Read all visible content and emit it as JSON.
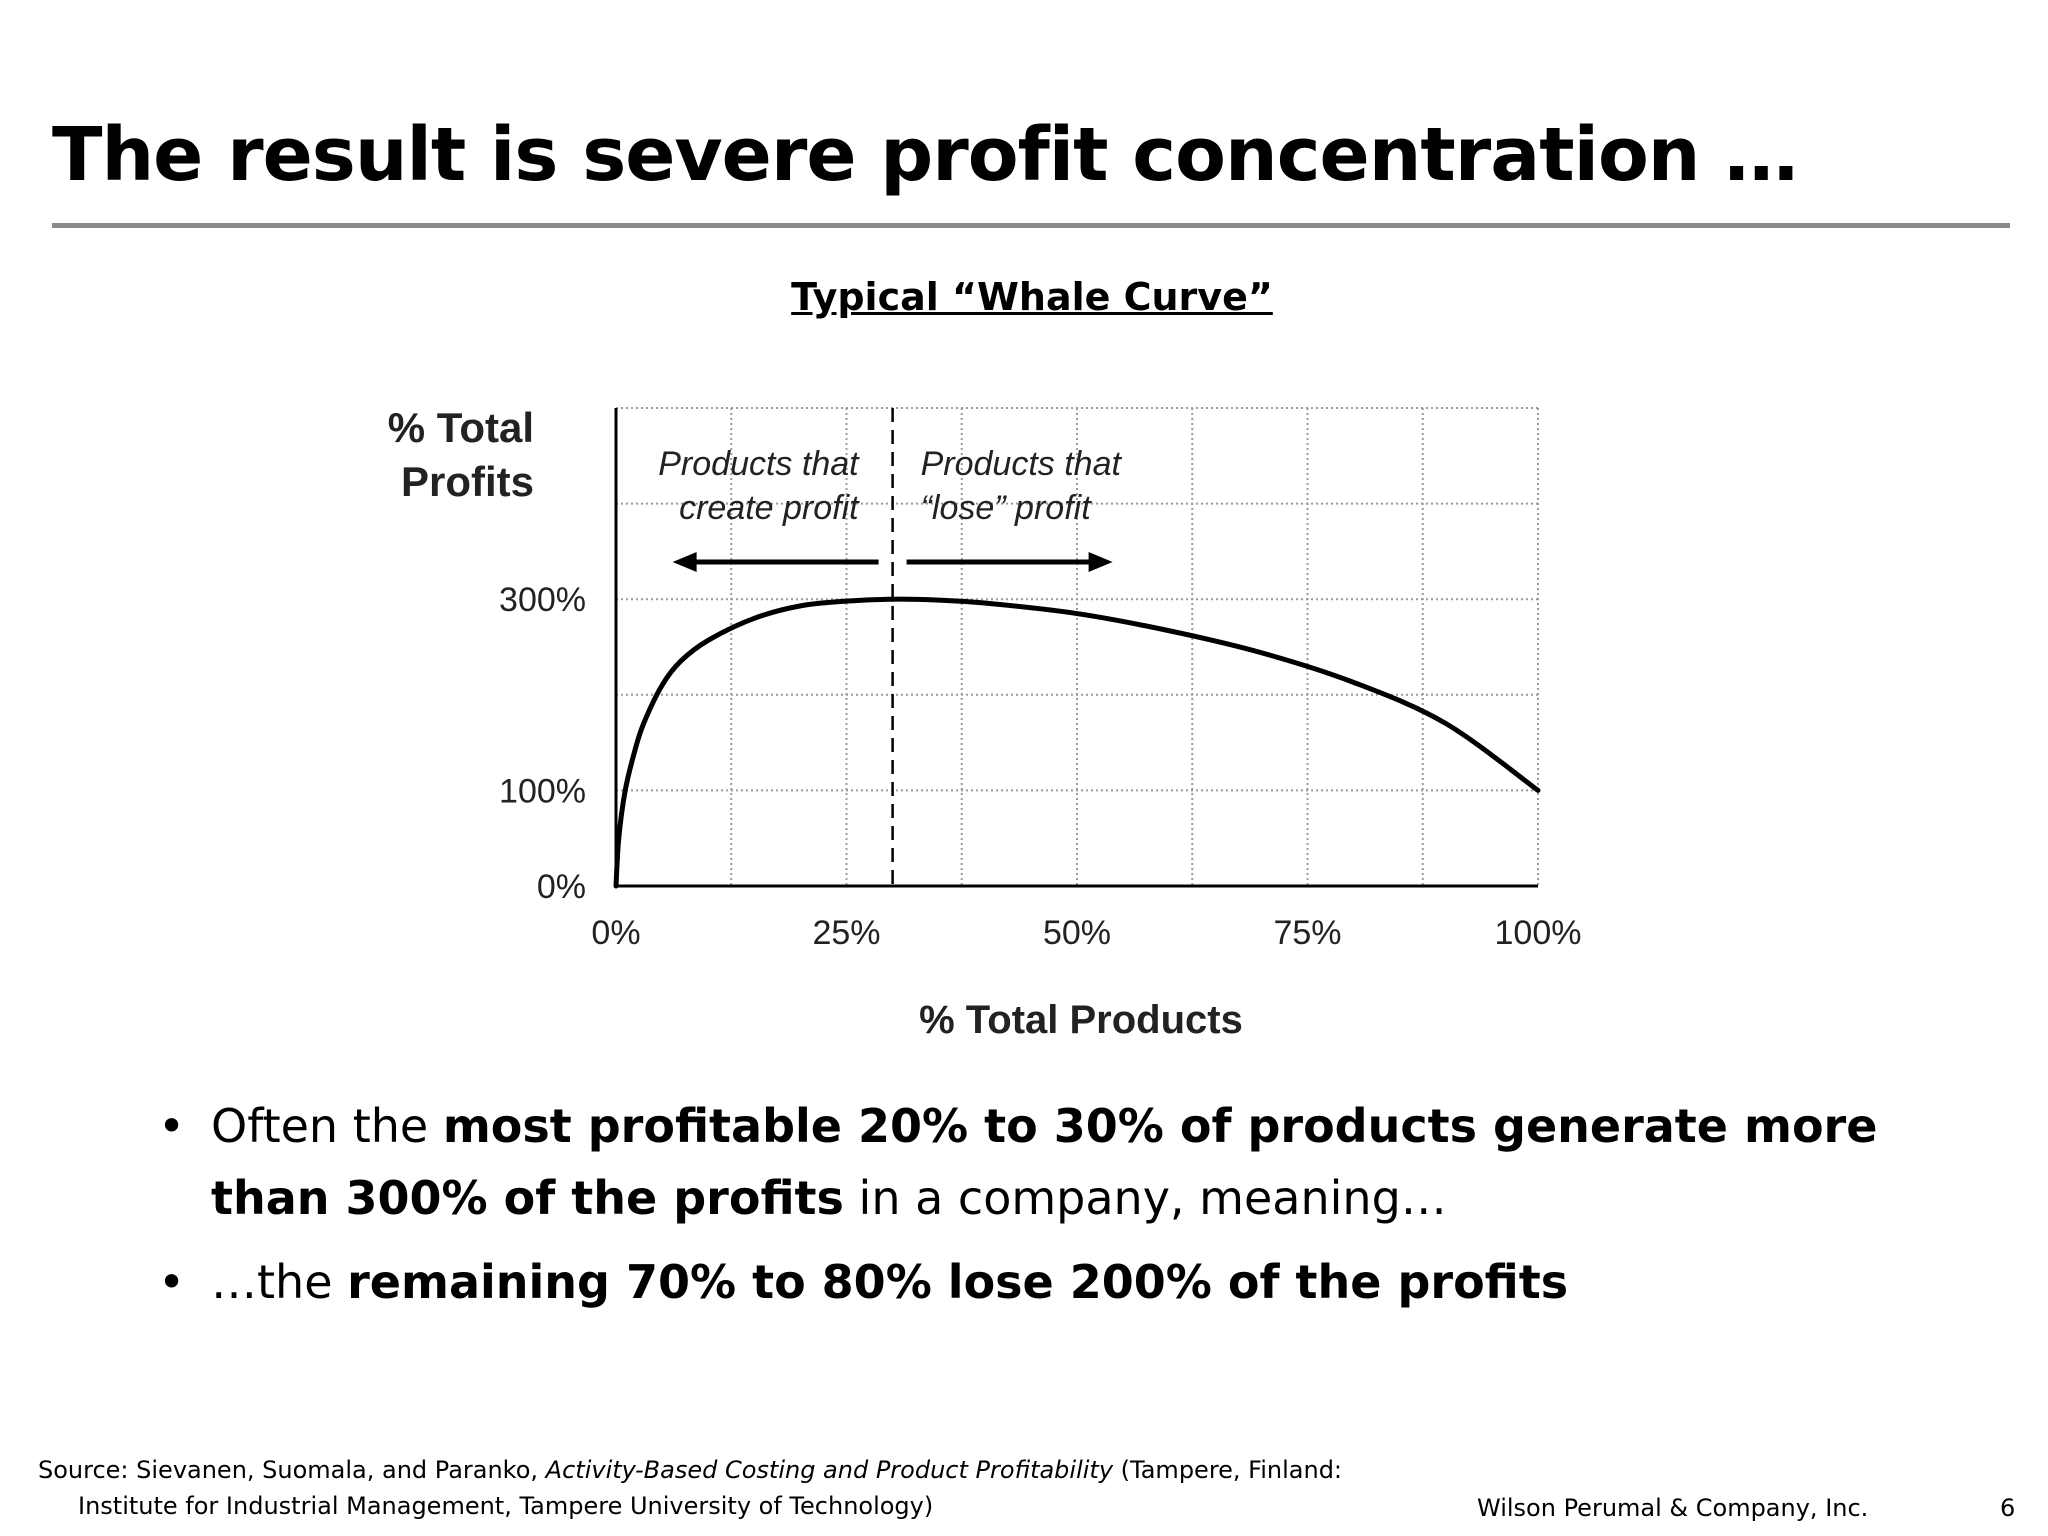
{
  "slide": {
    "title": "The result is severe profit concentration …",
    "bullets": [
      {
        "parts": [
          {
            "text": "Often the ",
            "bold": false
          },
          {
            "text": "most profitable 20% to 30% of products generate more than 300% of the profits",
            "bold": true
          },
          {
            "text": " in a company, meaning…",
            "bold": false
          }
        ]
      },
      {
        "parts": [
          {
            "text": "…the ",
            "bold": false
          },
          {
            "text": "remaining 70% to 80% lose 200% of the profits",
            "bold": true
          }
        ]
      }
    ],
    "source": {
      "prefix": "Source:  Sievanen, Suomala, and Paranko, ",
      "book": "Activity-Based Costing and Product Profitability",
      "suffix": " (Tampere, Finland:",
      "line2": "Institute for Industrial Management, Tampere University of Technology)"
    },
    "footer_company": "Wilson Perumal & Company, Inc.",
    "page_number": "6"
  },
  "chart_data": {
    "type": "line",
    "title": "Typical “Whale Curve”",
    "xlabel": "% Total Products",
    "ylabel": [
      "% Total",
      "Profits"
    ],
    "xlim": [
      0,
      100
    ],
    "ylim": [
      0,
      500
    ],
    "x_ticks": [
      0,
      25,
      50,
      75,
      100
    ],
    "x_tick_labels": [
      "0%",
      "25%",
      "50%",
      "75%",
      "100%"
    ],
    "y_ticks": [
      0,
      100,
      300
    ],
    "y_tick_labels": [
      "0%",
      "100%",
      "300%"
    ],
    "grid": true,
    "series": [
      {
        "x": [
          0,
          0.3,
          1,
          2,
          3,
          5,
          7,
          10,
          15,
          20,
          25,
          30,
          35,
          40,
          50,
          60,
          70,
          80,
          90,
          100
        ],
        "values": [
          0,
          50,
          100,
          140,
          170,
          210,
          235,
          257,
          280,
          293,
          298,
          300,
          299,
          296,
          285,
          267,
          244,
          213,
          170,
          100
        ]
      }
    ],
    "divider_x": 30,
    "annotations": [
      {
        "lines": [
          "Products that",
          "create profit"
        ],
        "arrow": "left"
      },
      {
        "lines": [
          "Products that",
          "“lose” profit"
        ],
        "arrow": "right"
      }
    ],
    "colors": {
      "line": "#000000",
      "grid": "#9a9a9a",
      "axis": "#000000",
      "text": "#222222"
    }
  }
}
